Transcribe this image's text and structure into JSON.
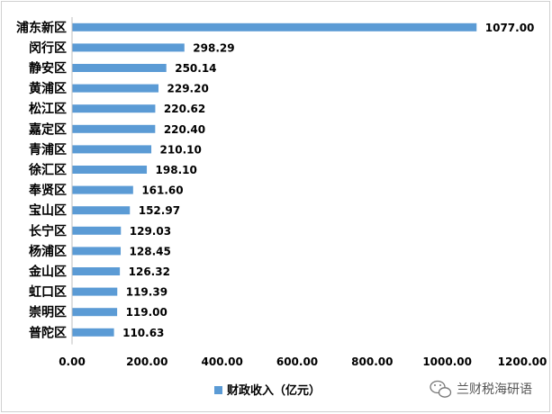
{
  "chart_data": {
    "type": "bar",
    "orientation": "horizontal",
    "categories": [
      "浦东新区",
      "闵行区",
      "静安区",
      "黄浦区",
      "松江区",
      "嘉定区",
      "青浦区",
      "徐汇区",
      "奉贤区",
      "宝山区",
      "长宁区",
      "杨浦区",
      "金山区",
      "虹口区",
      "崇明区",
      "普陀区"
    ],
    "series": [
      {
        "name": "财政收入（亿元）",
        "values": [
          1077.0,
          298.29,
          250.14,
          229.2,
          220.62,
          220.4,
          210.1,
          198.1,
          161.6,
          152.97,
          129.03,
          128.45,
          126.32,
          119.39,
          119.0,
          110.63
        ],
        "labels": [
          "1077.00",
          "298.29",
          "250.14",
          "229.20",
          "220.62",
          "220.40",
          "210.10",
          "198.10",
          "161.60",
          "152.97",
          "129.03",
          "128.45",
          "126.32",
          "119.39",
          "119.00",
          "110.63"
        ],
        "color": "#5b9bd5"
      }
    ],
    "xticks": [
      "0.00",
      "200.00",
      "400.00",
      "600.00",
      "800.00",
      "1000.00",
      "1200.00"
    ],
    "xlim": [
      0,
      1200
    ],
    "grid": false,
    "legend": "bottom"
  },
  "watermark": {
    "text": "兰财税海研语",
    "icon": "wechat-icon"
  }
}
